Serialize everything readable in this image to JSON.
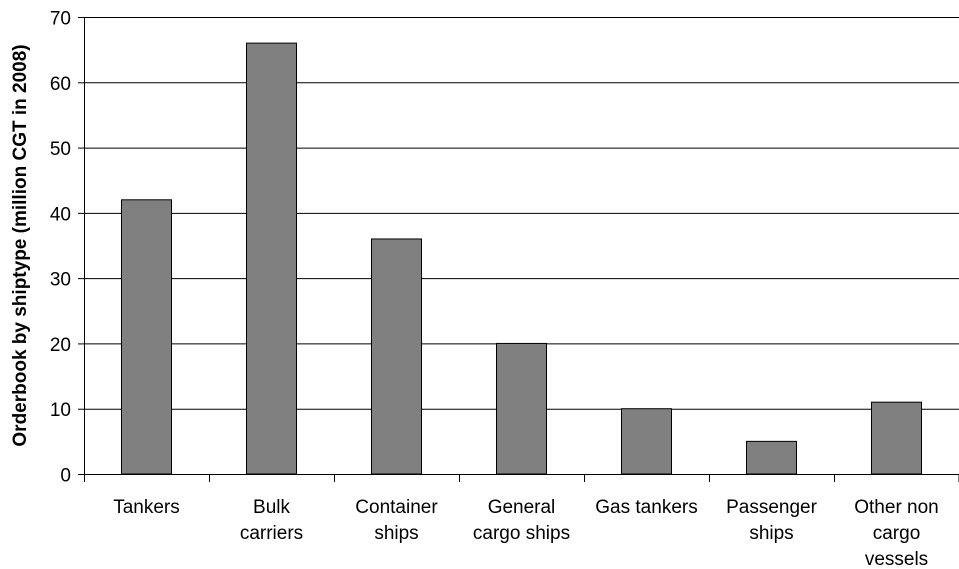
{
  "chart_data": {
    "type": "bar",
    "categories": [
      "Tankers",
      "Bulk carriers",
      "Container ships",
      "General cargo ships",
      "Gas tankers",
      "Passenger ships",
      "Other non cargo vessels"
    ],
    "category_label_lines": [
      [
        "Tankers"
      ],
      [
        "Bulk",
        "carriers"
      ],
      [
        "Container",
        "ships"
      ],
      [
        "General",
        "cargo ships"
      ],
      [
        "Gas tankers"
      ],
      [
        "Passenger",
        "ships"
      ],
      [
        "Other non",
        "cargo",
        "vessels"
      ]
    ],
    "values": [
      42,
      66,
      36,
      20,
      10,
      5,
      11
    ],
    "ylabel": "Orderbook by shiptype (million CGT in 2008)",
    "xlabel": "",
    "ylim": [
      0,
      70
    ],
    "yticks": [
      0,
      10,
      20,
      30,
      40,
      50,
      60,
      70
    ],
    "grid": true,
    "legend": "none",
    "colors": {
      "bar_fill": "#808080",
      "bar_stroke": "#000000",
      "grid": "#000000",
      "axis": "#000000"
    }
  }
}
